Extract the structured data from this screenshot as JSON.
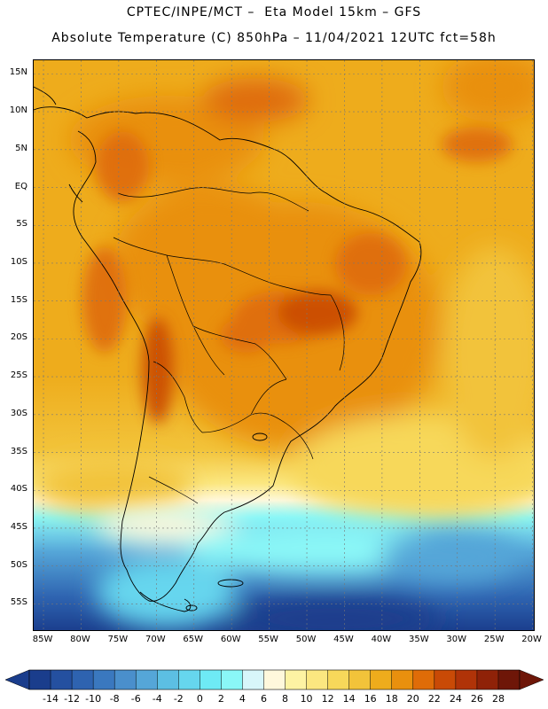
{
  "header": {
    "title_line1": "CPTEC/INPE/MCT –  Eta Model 15km – GFS",
    "title_line2": "Absolute Temperature (C) 850hPa – 11/04/2021 12UTC fct=58h"
  },
  "map": {
    "region": "South America",
    "variable": "Absolute Temperature (C) 850hPa",
    "lat_labels": [
      {
        "lat": 15,
        "text": "15N"
      },
      {
        "lat": 10,
        "text": "10N"
      },
      {
        "lat": 5,
        "text": "5N"
      },
      {
        "lat": 0,
        "text": "EQ"
      },
      {
        "lat": -5,
        "text": "5S"
      },
      {
        "lat": -10,
        "text": "10S"
      },
      {
        "lat": -15,
        "text": "15S"
      },
      {
        "lat": -20,
        "text": "20S"
      },
      {
        "lat": -25,
        "text": "25S"
      },
      {
        "lat": -30,
        "text": "30S"
      },
      {
        "lat": -35,
        "text": "35S"
      },
      {
        "lat": -40,
        "text": "40S"
      },
      {
        "lat": -45,
        "text": "45S"
      },
      {
        "lat": -50,
        "text": "50S"
      },
      {
        "lat": -55,
        "text": "55S"
      }
    ],
    "lon_labels": [
      {
        "lon": -85,
        "text": "85W"
      },
      {
        "lon": -80,
        "text": "80W"
      },
      {
        "lon": -75,
        "text": "75W"
      },
      {
        "lon": -70,
        "text": "70W"
      },
      {
        "lon": -65,
        "text": "65W"
      },
      {
        "lon": -60,
        "text": "60W"
      },
      {
        "lon": -55,
        "text": "55W"
      },
      {
        "lon": -50,
        "text": "50W"
      },
      {
        "lon": -45,
        "text": "45W"
      },
      {
        "lon": -40,
        "text": "40W"
      },
      {
        "lon": -35,
        "text": "35W"
      },
      {
        "lon": -30,
        "text": "30W"
      },
      {
        "lon": -25,
        "text": "25W"
      },
      {
        "lon": -20,
        "text": "20W"
      }
    ]
  },
  "colorbar": {
    "labels": [
      "-14",
      "-12",
      "-10",
      "-8",
      "-6",
      "-4",
      "-2",
      "0",
      "2",
      "4",
      "6",
      "8",
      "10",
      "12",
      "14",
      "16",
      "18",
      "20",
      "22",
      "24",
      "26",
      "28"
    ],
    "colors": [
      "#1a3d8c",
      "#2450a0",
      "#2e63b0",
      "#3a78bf",
      "#4a8fcc",
      "#55a6d8",
      "#5cbfe3",
      "#66d6ee",
      "#6eeaf5",
      "#8af7f7",
      "#d8f6fa",
      "#fff8dc",
      "#fdf3a3",
      "#fbe780",
      "#f7d85a",
      "#f2c33a",
      "#eeac1c",
      "#e9900e",
      "#df6c08",
      "#c94a06",
      "#b03308",
      "#8f2208",
      "#6e1608"
    ]
  }
}
